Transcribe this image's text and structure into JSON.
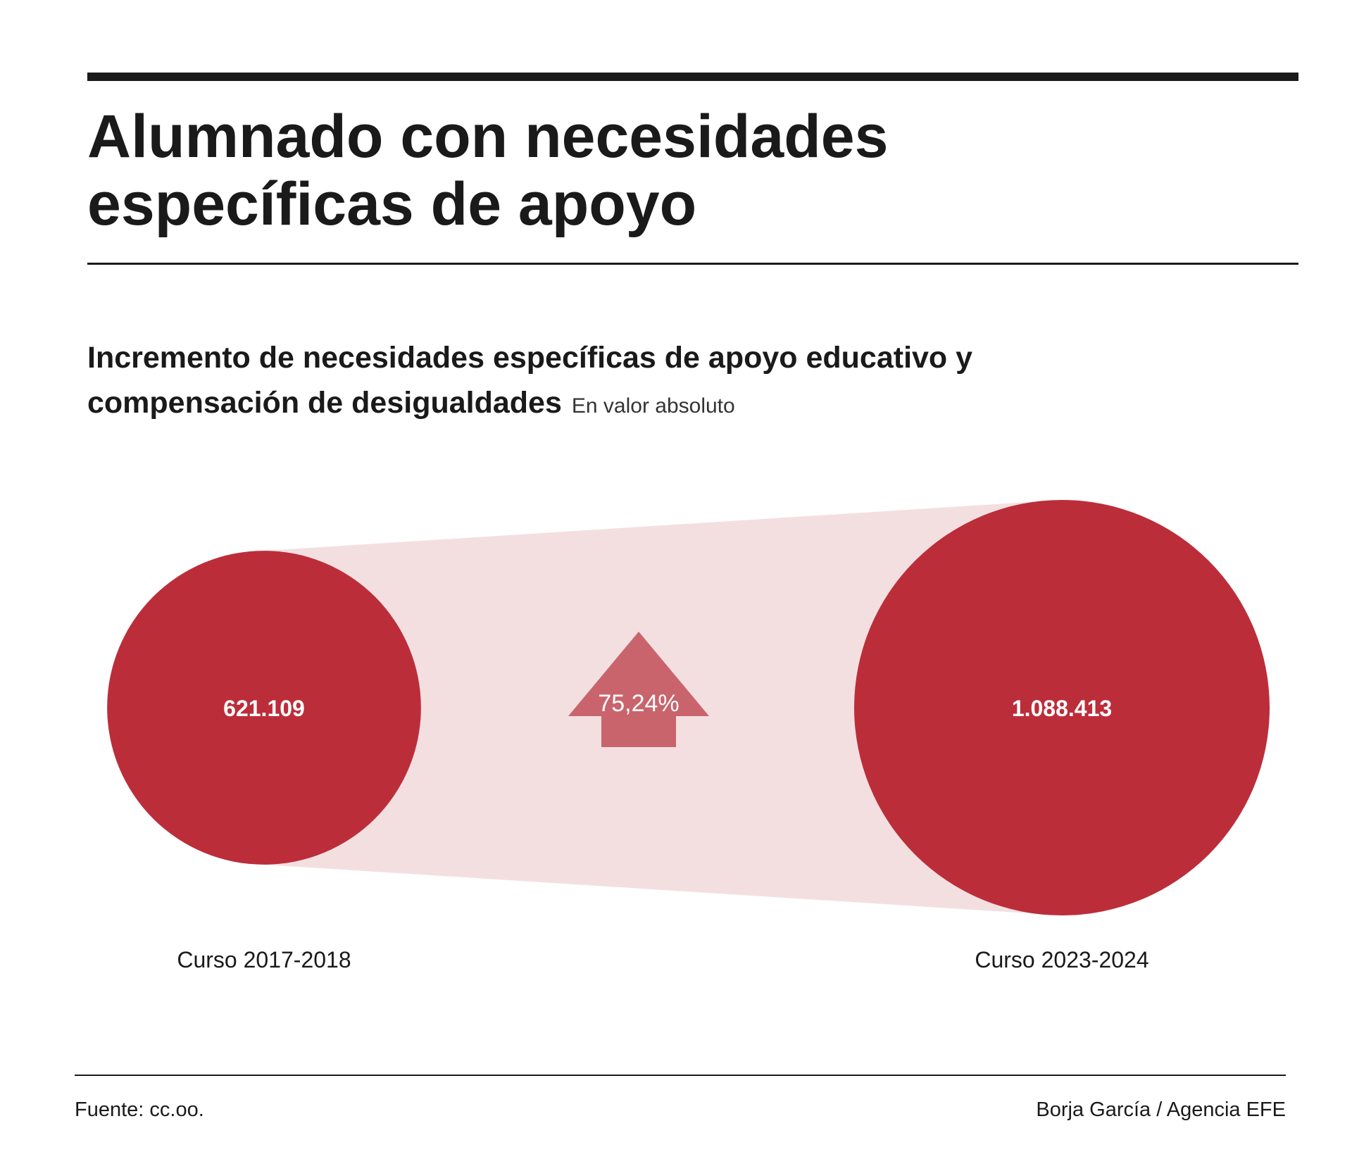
{
  "header": {
    "title_line1": "Alumnado con necesidades",
    "title_line2": "específicas de apoyo"
  },
  "chart_data": {
    "type": "bubble",
    "title": "Incremento de necesidades específicas de apoyo educativo y compensación de desigualdades",
    "subtitle": "En valor absoluto",
    "categories": [
      "Curso 2017-2018",
      "Curso 2023-2024"
    ],
    "values": [
      621109,
      1088413
    ],
    "value_labels": [
      "621.109",
      "1.088.413"
    ],
    "change_label": "75,24%",
    "change_direction": "up",
    "colors": {
      "bubble": "#bc2d3a",
      "connector": "#f4dfe0",
      "arrow": "#c9646c",
      "bubble_text": "#ffffff"
    }
  },
  "footer": {
    "source": "Fuente: cc.oo.",
    "credit": "Borja García / Agencia EFE"
  }
}
